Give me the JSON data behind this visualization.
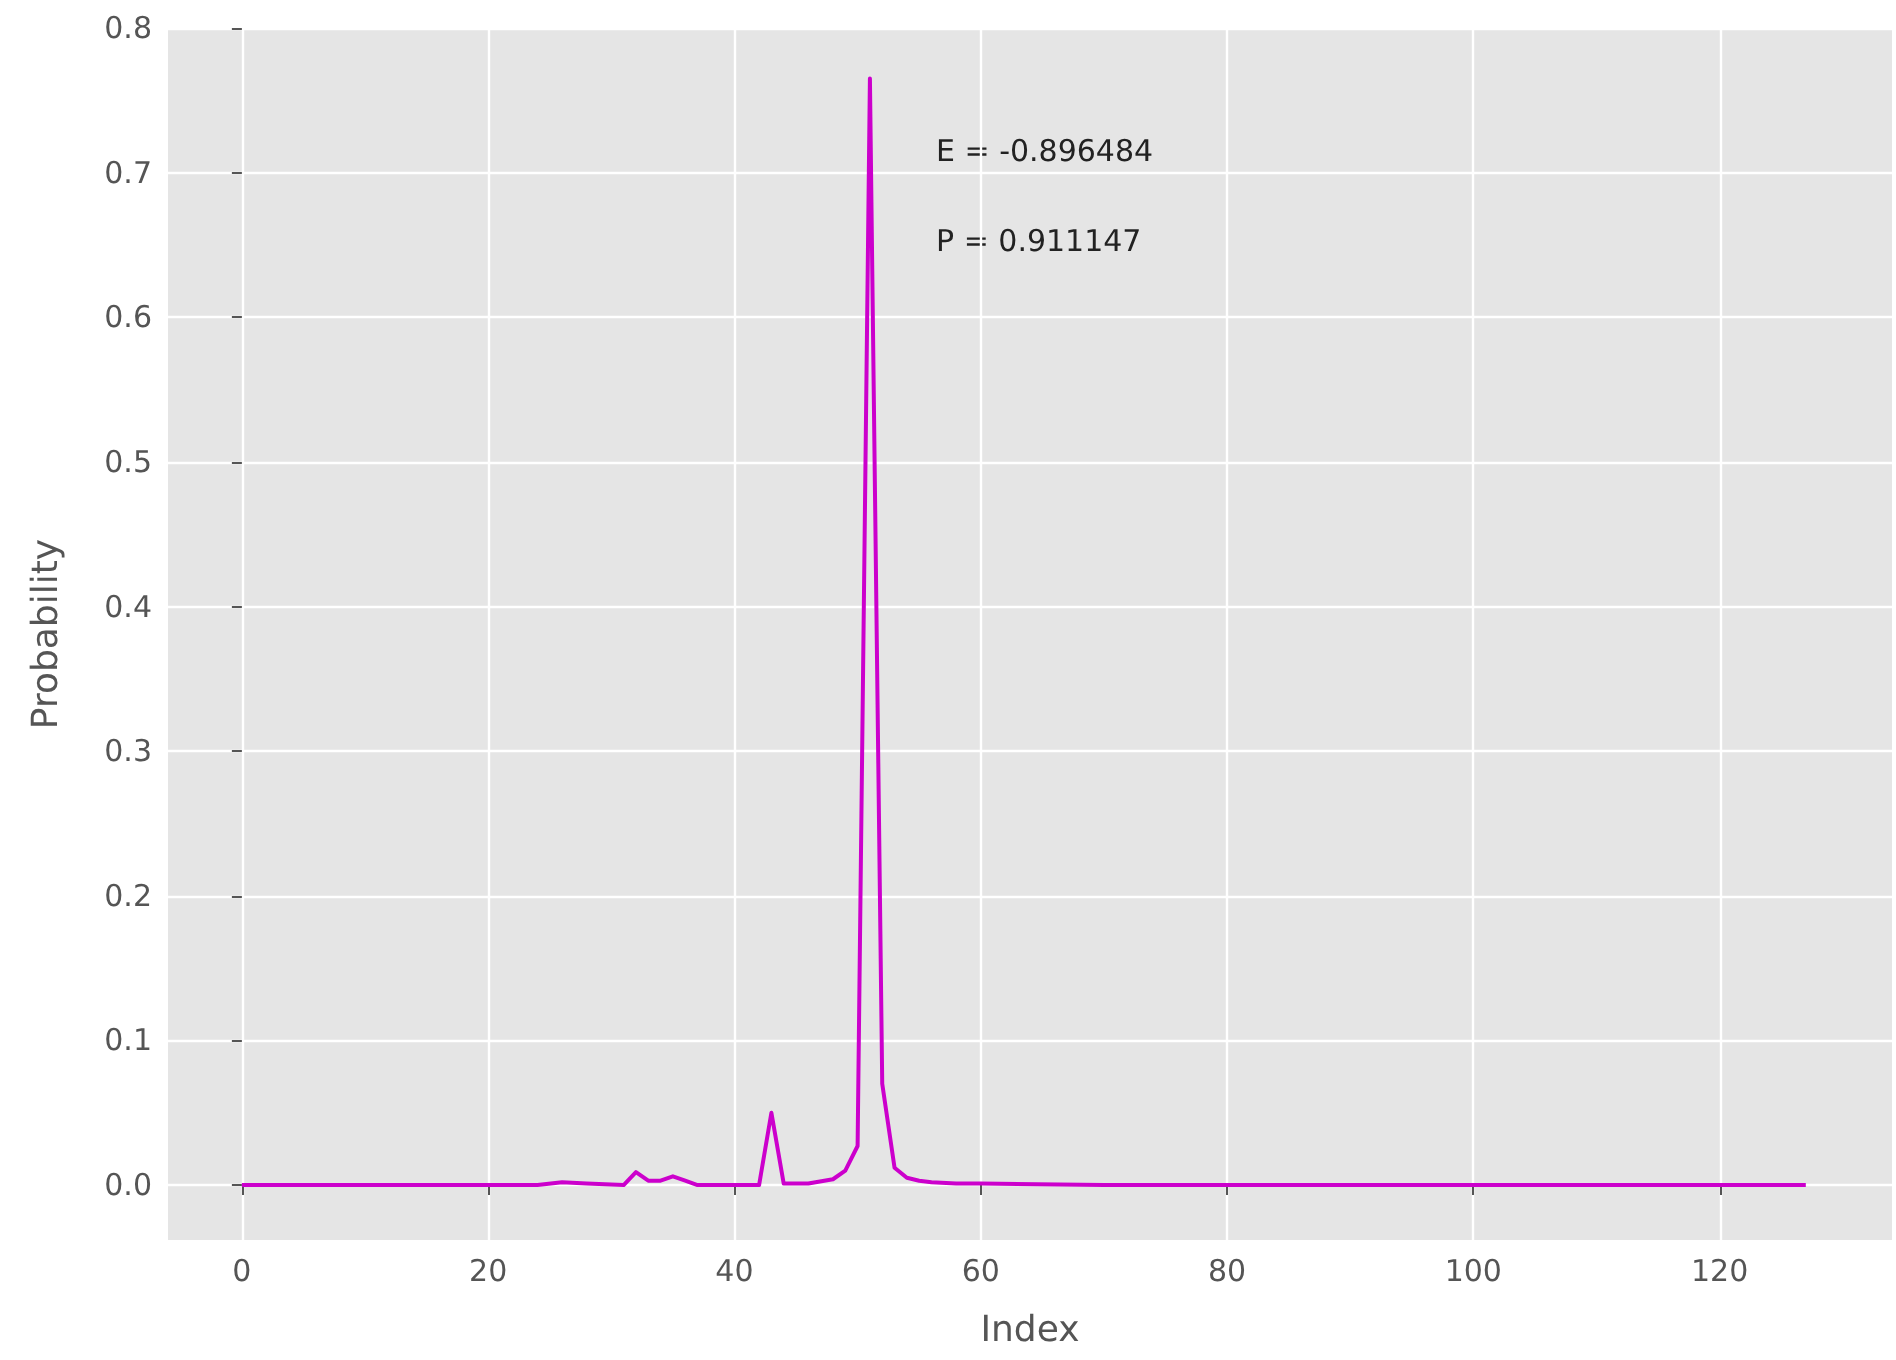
{
  "chart_data": {
    "type": "line",
    "xlabel": "Index",
    "ylabel": "Probability",
    "annotations": [
      "E = -0.896484",
      "P = 0.911147"
    ],
    "x": [
      0,
      20,
      24,
      26,
      28,
      31,
      32,
      33,
      34,
      35,
      36,
      37,
      42,
      43,
      44,
      46,
      48,
      49,
      50,
      51,
      52,
      53,
      54,
      55,
      56,
      58,
      60,
      70,
      127
    ],
    "series": [
      {
        "color": "#cc00cc",
        "values": [
          0,
          0,
          0,
          0.002,
          0.001,
          0,
          0.009,
          0.003,
          0.003,
          0.006,
          0.003,
          0,
          0,
          0.05,
          0.001,
          0.001,
          0.004,
          0.01,
          0.027,
          0.765,
          0.07,
          0.012,
          0.005,
          0.003,
          0.002,
          0.001,
          0.001,
          0,
          0
        ]
      }
    ],
    "xlim": [
      -6,
      134
    ],
    "xticks": [
      0,
      20,
      40,
      60,
      80,
      100,
      120
    ],
    "ylim": [
      -0.038,
      0.8
    ],
    "yticks": [
      {
        "value": 0,
        "label": "0.0"
      },
      0.1,
      0.2,
      0.3,
      0.4,
      0.5,
      0.6,
      0.7,
      0.8
    ],
    "grid": true,
    "marker": "none",
    "line_style": "solid"
  }
}
